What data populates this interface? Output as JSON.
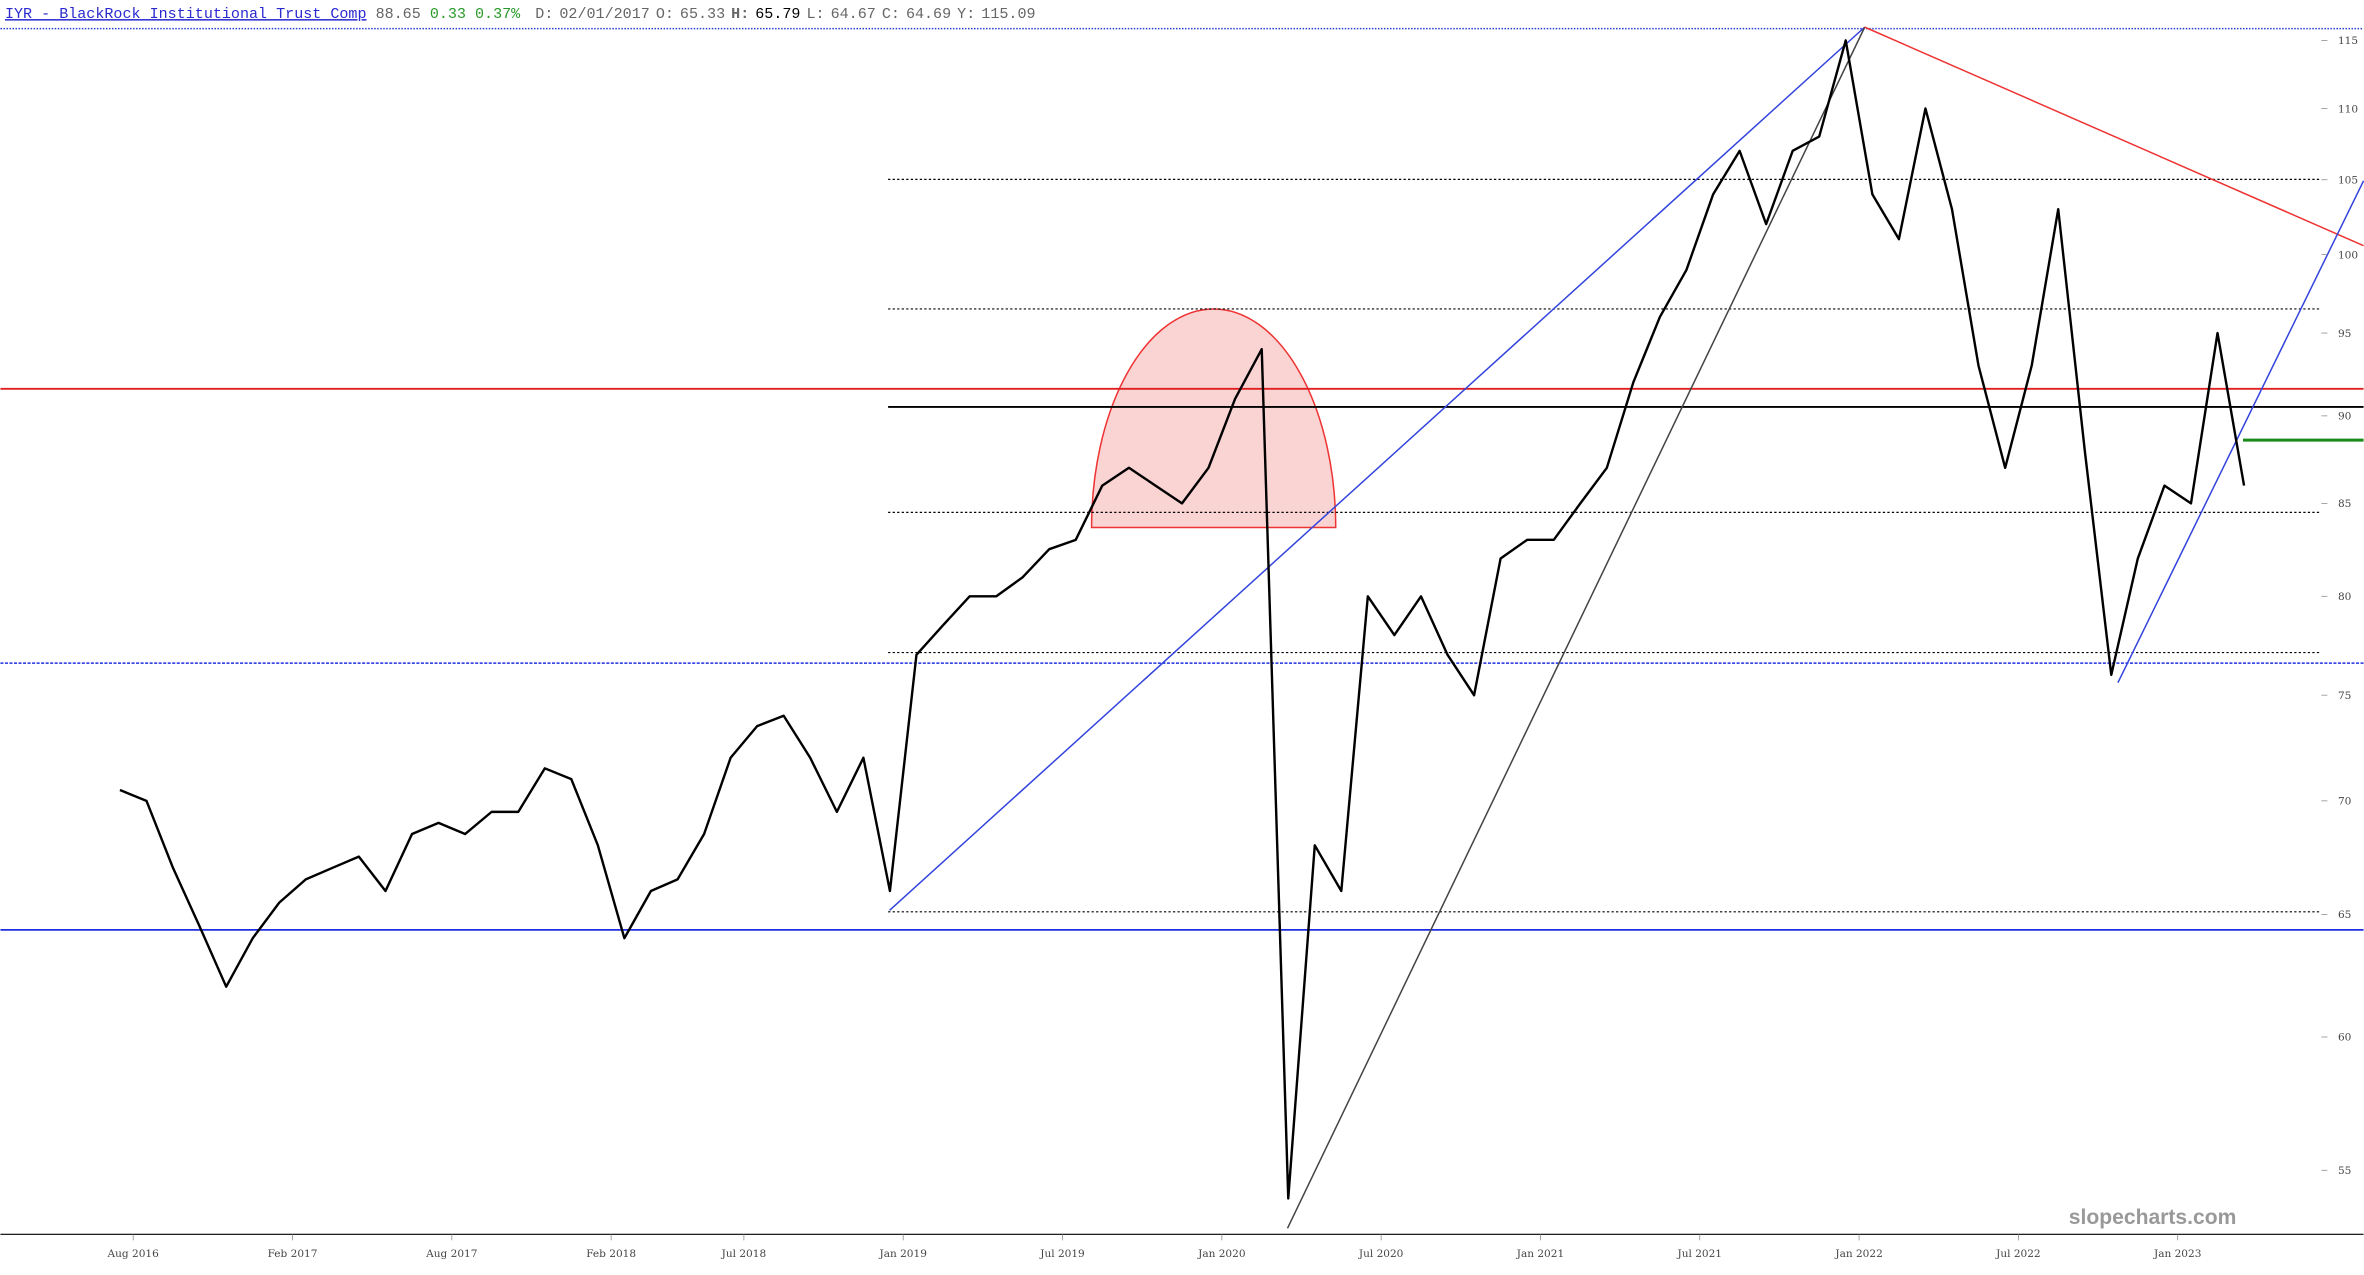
{
  "header": {
    "ticker": "IYR - BlackRock Institutional Trust Comp",
    "last": 88.65,
    "change": 0.33,
    "change_pct": "0.37%",
    "fields": [
      {
        "label": "D:",
        "value": "02/01/2017"
      },
      {
        "label": "O:",
        "value": 65.33
      },
      {
        "label": "H:",
        "value": 65.79
      },
      {
        "label": "L:",
        "value": 64.67
      },
      {
        "label": "C:",
        "value": 64.69
      },
      {
        "label": "Y:",
        "value": 115.09
      }
    ]
  },
  "watermark": "slopecharts.com",
  "chart_data": {
    "type": "line",
    "color": "#000000",
    "log_scale": true,
    "x": [
      "2016-07",
      "2016-08",
      "2016-09",
      "2016-10",
      "2016-11",
      "2016-12",
      "2017-01",
      "2017-02",
      "2017-03",
      "2017-04",
      "2017-05",
      "2017-06",
      "2017-07",
      "2017-08",
      "2017-09",
      "2017-10",
      "2017-11",
      "2017-12",
      "2018-01",
      "2018-02",
      "2018-03",
      "2018-04",
      "2018-05",
      "2018-06",
      "2018-07",
      "2018-08",
      "2018-09",
      "2018-10",
      "2018-11",
      "2018-12",
      "2019-01",
      "2019-02",
      "2019-03",
      "2019-04",
      "2019-05",
      "2019-06",
      "2019-07",
      "2019-08",
      "2019-09",
      "2019-10",
      "2019-11",
      "2019-12",
      "2020-01",
      "2020-02",
      "2020-03",
      "2020-04",
      "2020-05",
      "2020-06",
      "2020-07",
      "2020-08",
      "2020-09",
      "2020-10",
      "2020-11",
      "2020-12",
      "2021-01",
      "2021-02",
      "2021-03",
      "2021-04",
      "2021-05",
      "2021-06",
      "2021-07",
      "2021-08",
      "2021-09",
      "2021-10",
      "2021-11",
      "2021-12",
      "2022-01",
      "2022-02",
      "2022-03",
      "2022-04",
      "2022-05",
      "2022-06",
      "2022-07",
      "2022-08",
      "2022-09",
      "2022-10",
      "2022-11",
      "2022-12",
      "2023-01",
      "2023-02",
      "2023-03"
    ],
    "values": [
      70.5,
      70,
      67,
      64.5,
      62,
      64,
      65.5,
      66.5,
      67,
      67.5,
      66,
      68.5,
      69,
      68.5,
      69.5,
      69.5,
      71.5,
      71,
      68,
      64,
      66,
      66.5,
      68.5,
      72,
      73.5,
      74,
      72,
      69.5,
      72,
      66,
      77,
      78.5,
      80,
      80,
      81,
      82.5,
      83,
      86,
      87,
      86,
      85,
      87,
      91,
      94,
      54,
      68,
      66,
      80,
      78,
      80,
      77,
      75,
      82,
      83,
      83,
      85,
      87,
      92,
      96,
      99,
      104,
      107,
      102,
      107,
      108,
      115,
      104,
      101,
      110,
      103,
      93,
      87,
      93,
      103,
      88,
      76,
      82,
      86,
      85,
      95,
      86
    ],
    "xlim": [
      "2016-03",
      "2023-07"
    ],
    "xticks": [
      {
        "value": "2016-08",
        "label": "Aug 2016"
      },
      {
        "value": "2017-02",
        "label": "Feb 2017"
      },
      {
        "value": "2017-08",
        "label": "Aug 2017"
      },
      {
        "value": "2018-02",
        "label": "Feb 2018"
      },
      {
        "value": "2018-07",
        "label": "Jul 2018"
      },
      {
        "value": "2019-01",
        "label": "Jan 2019"
      },
      {
        "value": "2019-07",
        "label": "Jul 2019"
      },
      {
        "value": "2020-01",
        "label": "Jan 2020"
      },
      {
        "value": "2020-07",
        "label": "Jul 2020"
      },
      {
        "value": "2021-01",
        "label": "Jan 2021"
      },
      {
        "value": "2021-07",
        "label": "Jul 2021"
      },
      {
        "value": "2022-01",
        "label": "Jan 2022"
      },
      {
        "value": "2022-07",
        "label": "Jul 2022"
      },
      {
        "value": "2023-01",
        "label": "Jan 2023"
      }
    ],
    "ylim": [
      52.8,
      116
    ],
    "yticks": [
      55,
      60,
      65,
      70,
      75,
      80,
      85,
      90,
      95,
      100,
      105,
      110,
      115
    ]
  }
}
